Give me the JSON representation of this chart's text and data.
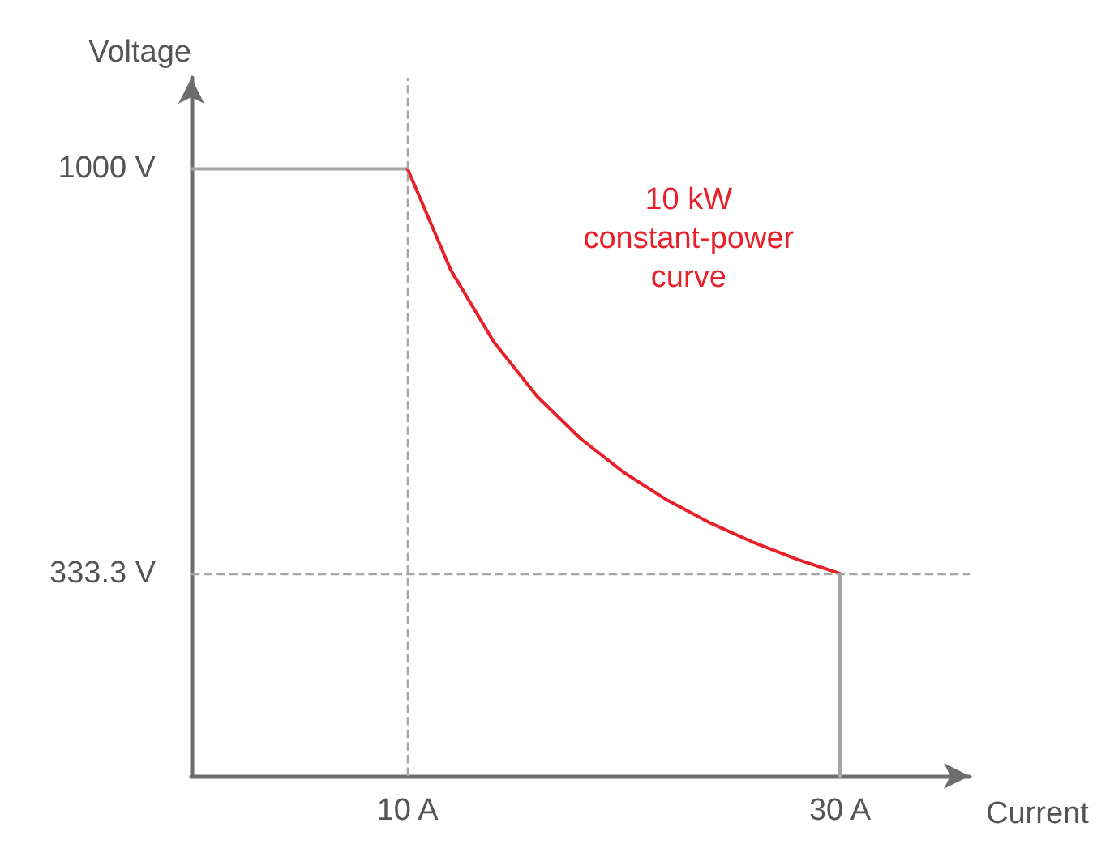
{
  "chart_data": {
    "type": "line",
    "xlabel": "Current",
    "ylabel": "Voltage",
    "xlim": [
      0,
      36
    ],
    "ylim": [
      0,
      1150
    ],
    "xticks": [
      {
        "value": 10,
        "label": "10 A"
      },
      {
        "value": 30,
        "label": "30 A"
      }
    ],
    "yticks": [
      {
        "value": 333.3,
        "label": "333.3 V"
      },
      {
        "value": 1000,
        "label": "1000 V"
      }
    ],
    "grid": false,
    "legend": false,
    "marker": "none",
    "series": [
      {
        "color": "#a6a6a6",
        "x": [
          0,
          10,
          null,
          30,
          30
        ],
        "values": [
          1000,
          1000,
          null,
          333.3,
          0
        ]
      },
      {
        "name": "10 kW\nconstant-power\ncurve",
        "color": "#e8202a",
        "x": [
          10,
          12,
          14,
          16,
          18,
          20,
          22,
          24,
          26,
          28,
          30
        ],
        "values": [
          1000,
          833.3,
          714.3,
          625,
          555.6,
          500,
          454.5,
          416.7,
          384.6,
          357.1,
          333.3
        ]
      }
    ],
    "ref_lines": [
      {
        "axis": "x",
        "value": 10,
        "color": "#a6a6a6",
        "line_style": "dashed"
      },
      {
        "axis": "y",
        "value": 333.3,
        "color": "#a6a6a6",
        "line_style": "dashed"
      }
    ]
  }
}
